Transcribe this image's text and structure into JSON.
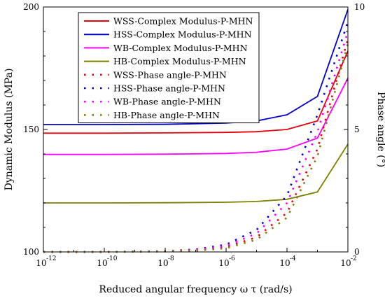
{
  "chart_data": {
    "type": "line",
    "title": "",
    "xlabel": "Reduced angular frequency ω τ (rad/s)",
    "ylabel": "Dynamic Modulus (MPa)",
    "y2label": "Phase angle (°)",
    "xscale": "log",
    "xlim": [
      1e-12,
      0.01
    ],
    "ylim": [
      100,
      200
    ],
    "y2lim": [
      0,
      10
    ],
    "x_ticks": [
      "10",
      "10",
      "10",
      "10",
      "10",
      "10"
    ],
    "x_tick_exponents": [
      "-12",
      "-10",
      "-8",
      "-6",
      "-4",
      "-2"
    ],
    "y_ticks": [
      "100",
      "150",
      "200"
    ],
    "y2_ticks": [
      "0",
      "5",
      "10"
    ],
    "legend_position": "top-center",
    "series": [
      {
        "name": "WSS-Complex Modulus-P-MHN",
        "axis": "left",
        "style": "solid",
        "color": "#e8000b",
        "x": [
          1e-12,
          1e-10,
          1e-08,
          1e-06,
          1e-05,
          0.0001,
          0.001,
          0.01
        ],
        "values": [
          148.5,
          148.5,
          148.6,
          148.8,
          149.1,
          150.0,
          153.5,
          182.0
        ]
      },
      {
        "name": "HSS-Complex Modulus-P-MHN",
        "axis": "left",
        "style": "solid",
        "color": "#0000c8",
        "x": [
          1e-12,
          1e-10,
          1e-08,
          1e-06,
          1e-05,
          0.0001,
          0.001,
          0.01
        ],
        "values": [
          152.0,
          152.0,
          152.1,
          152.6,
          153.5,
          156.0,
          163.5,
          199.0
        ]
      },
      {
        "name": "WB-Complex Modulus-P-MHN",
        "axis": "left",
        "style": "solid",
        "color": "#ff00ff",
        "x": [
          1e-12,
          1e-10,
          1e-08,
          1e-06,
          1e-05,
          0.0001,
          0.001,
          0.01
        ],
        "values": [
          139.8,
          139.8,
          139.9,
          140.2,
          140.7,
          142.0,
          146.5,
          171.0
        ]
      },
      {
        "name": "HB-Complex Modulus-P-MHN",
        "axis": "left",
        "style": "solid",
        "color": "#7f7f00",
        "x": [
          1e-12,
          1e-10,
          1e-08,
          1e-06,
          1e-05,
          0.0001,
          0.001,
          0.01
        ],
        "values": [
          120.0,
          120.0,
          120.1,
          120.3,
          120.6,
          121.5,
          124.5,
          144.0
        ]
      },
      {
        "name": "WSS-Phase angle-P-MHN",
        "axis": "right",
        "style": "dotted",
        "color": "#e8000b",
        "x": [
          1e-12,
          1e-10,
          1e-08,
          1e-07,
          1e-06,
          1e-05,
          0.0001,
          0.001,
          0.01
        ],
        "values": [
          0,
          0,
          0.02,
          0.06,
          0.2,
          0.6,
          1.6,
          4.2,
          8.7
        ]
      },
      {
        "name": "HSS-Phase angle-P-MHN",
        "axis": "right",
        "style": "dotted",
        "color": "#0000c8",
        "x": [
          1e-12,
          1e-10,
          1e-08,
          1e-07,
          1e-06,
          1e-05,
          0.0001,
          0.001,
          0.01
        ],
        "values": [
          0,
          0,
          0.03,
          0.1,
          0.3,
          0.9,
          2.3,
          5.6,
          9.4
        ]
      },
      {
        "name": "WB-Phase angle-P-MHN",
        "axis": "right",
        "style": "dotted",
        "color": "#ff00ff",
        "x": [
          1e-12,
          1e-10,
          1e-08,
          1e-07,
          1e-06,
          1e-05,
          0.0001,
          0.001,
          0.01
        ],
        "values": [
          0,
          0,
          0.03,
          0.08,
          0.25,
          0.75,
          2.0,
          4.9,
          9.0
        ]
      },
      {
        "name": "HB-Phase angle-P-MHN",
        "axis": "right",
        "style": "dotted",
        "color": "#7f7f00",
        "x": [
          1e-12,
          1e-10,
          1e-08,
          1e-07,
          1e-06,
          1e-05,
          0.0001,
          0.001,
          0.01
        ],
        "values": [
          0,
          0,
          0.02,
          0.05,
          0.15,
          0.5,
          1.4,
          3.9,
          8.5
        ]
      }
    ]
  }
}
